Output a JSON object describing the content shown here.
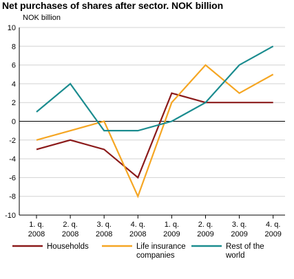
{
  "chart_data": {
    "type": "line",
    "title": "Net purchases of shares after sector. NOK billion",
    "ylabel": "NOK billion",
    "xlabel": "",
    "ylim": [
      -10,
      10
    ],
    "yticks": [
      10,
      8,
      6,
      4,
      2,
      0,
      -2,
      -4,
      -6,
      -8,
      -10
    ],
    "grid": true,
    "legend_position": "bottom",
    "categories": [
      [
        "1. q.",
        "2008"
      ],
      [
        "2. q.",
        "2008"
      ],
      [
        "3. q.",
        "2008"
      ],
      [
        "4. q.",
        "2008"
      ],
      [
        "1. q.",
        "2009"
      ],
      [
        "2. q.",
        "2009"
      ],
      [
        "3. q.",
        "2009"
      ],
      [
        "4. q.",
        "2009"
      ]
    ],
    "series": [
      {
        "name": [
          "Households"
        ],
        "color": "#8b1a1a",
        "values": [
          -3,
          -2,
          -3,
          -6,
          3,
          2,
          2,
          2
        ]
      },
      {
        "name": [
          "Life insurance",
          "companies"
        ],
        "color": "#f5a623",
        "values": [
          -2,
          -1,
          0,
          -8,
          2,
          6,
          3,
          5
        ]
      },
      {
        "name": [
          "Rest of the",
          "world"
        ],
        "color": "#1b8c8f",
        "values": [
          1,
          4,
          -1,
          -1,
          0,
          2,
          6,
          8
        ]
      }
    ]
  }
}
